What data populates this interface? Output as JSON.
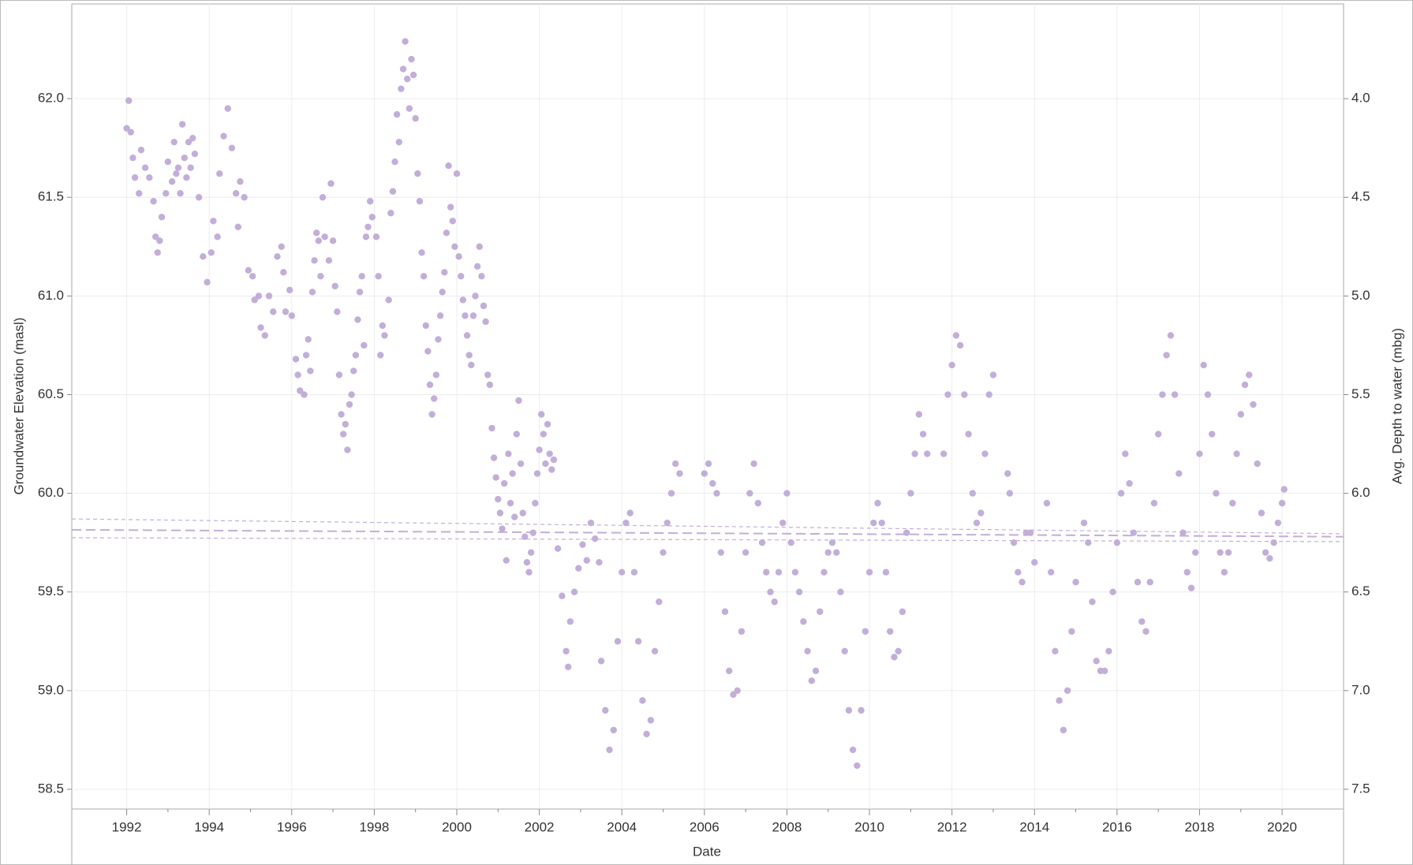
{
  "chart_data": {
    "type": "scatter",
    "x_label": "Date",
    "y_label": "Groundwater Elevation (masl)",
    "y2_label": "Avg. Depth to water (mbg)",
    "color": "#c3aed8",
    "grid": true,
    "xlim": [
      1990.67,
      2021.49
    ],
    "xticks": [
      1992,
      1994,
      1996,
      1998,
      2000,
      2002,
      2004,
      2006,
      2008,
      2010,
      2012,
      2014,
      2016,
      2018,
      2020
    ],
    "ylim": [
      58.4,
      62.48
    ],
    "yticks": [
      {
        "value": 58.5,
        "label": "58.5"
      },
      {
        "value": 59,
        "label": "59.0"
      },
      {
        "value": 59.5,
        "label": "59.5"
      },
      {
        "value": 60,
        "label": "60.0"
      },
      {
        "value": 60.5,
        "label": "60.5"
      },
      {
        "value": 61,
        "label": "61.0"
      },
      {
        "value": 61.5,
        "label": "61.5"
      },
      {
        "value": 62,
        "label": "62.0"
      }
    ],
    "y2lim": [
      7.6,
      3.52
    ],
    "y2ticks": [
      {
        "value": 7.5,
        "label": "7.5"
      },
      {
        "value": 7,
        "label": "7.0"
      },
      {
        "value": 6.5,
        "label": "6.5"
      },
      {
        "value": 6,
        "label": "6.0"
      },
      {
        "value": 5.5,
        "label": "5.5"
      },
      {
        "value": 5,
        "label": "5.0"
      },
      {
        "value": 4.5,
        "label": "4.5"
      },
      {
        "value": 4,
        "label": "4.0"
      }
    ],
    "trend_lines": [
      {
        "x": [
          1990.67,
          2021.49
        ],
        "values": [
          59.815,
          59.78
        ]
      },
      {
        "x": [
          1990.67,
          2021.49
        ],
        "values": [
          59.87,
          59.795
        ]
      },
      {
        "x": [
          1990.67,
          2021.49
        ],
        "values": [
          59.775,
          59.755
        ]
      }
    ],
    "x": [
      1992.0,
      1992.05,
      1992.1,
      1992.15,
      1992.2,
      1992.3,
      1992.35,
      1992.45,
      1992.55,
      1992.65,
      1992.7,
      1992.75,
      1992.8,
      1992.85,
      1992.95,
      1993.0,
      1993.1,
      1993.15,
      1993.2,
      1993.25,
      1993.3,
      1993.35,
      1993.4,
      1993.45,
      1993.5,
      1993.55,
      1993.6,
      1993.65,
      1993.75,
      1993.85,
      1993.95,
      1994.05,
      1994.1,
      1994.2,
      1994.25,
      1994.35,
      1994.45,
      1994.55,
      1994.65,
      1994.7,
      1994.75,
      1994.85,
      1994.95,
      1995.05,
      1995.1,
      1995.2,
      1995.25,
      1995.35,
      1995.45,
      1995.55,
      1995.65,
      1995.75,
      1995.8,
      1995.85,
      1995.95,
      1996.0,
      1996.1,
      1996.15,
      1996.2,
      1996.3,
      1996.35,
      1996.4,
      1996.45,
      1996.5,
      1996.55,
      1996.6,
      1996.65,
      1996.7,
      1996.75,
      1996.8,
      1996.9,
      1996.95,
      1997.0,
      1997.05,
      1997.1,
      1997.15,
      1997.2,
      1997.25,
      1997.3,
      1997.35,
      1997.4,
      1997.45,
      1997.5,
      1997.55,
      1997.6,
      1997.65,
      1997.7,
      1997.75,
      1997.8,
      1997.85,
      1997.9,
      1997.95,
      1998.05,
      1998.1,
      1998.15,
      1998.2,
      1998.25,
      1998.35,
      1998.4,
      1998.45,
      1998.5,
      1998.55,
      1998.6,
      1998.65,
      1998.7,
      1998.75,
      1998.8,
      1998.85,
      1998.9,
      1998.95,
      1999.0,
      1999.05,
      1999.1,
      1999.15,
      1999.2,
      1999.25,
      1999.3,
      1999.35,
      1999.4,
      1999.45,
      1999.5,
      1999.55,
      1999.6,
      1999.65,
      1999.7,
      1999.75,
      1999.8,
      1999.85,
      1999.9,
      1999.95,
      2000.0,
      2000.05,
      2000.1,
      2000.15,
      2000.2,
      2000.25,
      2000.3,
      2000.35,
      2000.4,
      2000.45,
      2000.5,
      2000.55,
      2000.6,
      2000.65,
      2000.7,
      2000.75,
      2000.8,
      2000.85,
      2000.9,
      2000.95,
      2001.0,
      2001.05,
      2001.1,
      2001.15,
      2001.2,
      2001.25,
      2001.3,
      2001.35,
      2001.4,
      2001.45,
      2001.5,
      2001.55,
      2001.6,
      2001.65,
      2001.7,
      2001.75,
      2001.8,
      2001.85,
      2001.9,
      2001.95,
      2002.0,
      2002.05,
      2002.1,
      2002.15,
      2002.2,
      2002.25,
      2002.3,
      2002.35,
      2002.45,
      2002.55,
      2002.65,
      2002.7,
      2002.75,
      2002.85,
      2002.95,
      2003.05,
      2003.15,
      2003.25,
      2003.35,
      2003.45,
      2003.5,
      2003.6,
      2003.7,
      2003.8,
      2003.9,
      2004.0,
      2004.1,
      2004.2,
      2004.3,
      2004.4,
      2004.5,
      2004.6,
      2004.7,
      2004.8,
      2004.9,
      2005.0,
      2005.1,
      2005.2,
      2005.3,
      2005.4,
      2006.0,
      2006.1,
      2006.2,
      2006.3,
      2006.4,
      2006.5,
      2006.6,
      2006.7,
      2006.8,
      2006.9,
      2007.0,
      2007.1,
      2007.2,
      2007.3,
      2007.4,
      2007.5,
      2007.6,
      2007.7,
      2007.8,
      2007.9,
      2008.0,
      2008.1,
      2008.2,
      2008.3,
      2008.4,
      2008.5,
      2008.6,
      2008.7,
      2008.8,
      2008.9,
      2009.0,
      2009.1,
      2009.2,
      2009.3,
      2009.4,
      2009.5,
      2009.6,
      2009.7,
      2009.8,
      2009.9,
      2010.0,
      2010.1,
      2010.2,
      2010.3,
      2010.4,
      2010.5,
      2010.6,
      2010.7,
      2010.8,
      2010.9,
      2011.0,
      2011.1,
      2011.2,
      2011.3,
      2011.4,
      2011.8,
      2011.9,
      2012.0,
      2012.1,
      2012.2,
      2012.3,
      2012.4,
      2012.5,
      2012.6,
      2012.7,
      2012.8,
      2012.9,
      2013.0,
      2013.35,
      2013.4,
      2013.5,
      2013.6,
      2013.7,
      2013.8,
      2013.9,
      2014.0,
      2014.3,
      2014.4,
      2014.5,
      2014.6,
      2014.7,
      2014.8,
      2014.9,
      2015.0,
      2015.2,
      2015.3,
      2015.4,
      2015.5,
      2015.6,
      2015.7,
      2015.8,
      2015.9,
      2016.0,
      2016.1,
      2016.2,
      2016.3,
      2016.4,
      2016.5,
      2016.6,
      2016.7,
      2016.8,
      2016.9,
      2017.0,
      2017.1,
      2017.2,
      2017.3,
      2017.4,
      2017.5,
      2017.6,
      2017.7,
      2017.8,
      2017.9,
      2018.0,
      2018.1,
      2018.2,
      2018.3,
      2018.4,
      2018.5,
      2018.6,
      2018.7,
      2018.8,
      2018.9,
      2019.0,
      2019.1,
      2019.2,
      2019.3,
      2019.4,
      2019.5,
      2019.6,
      2019.7,
      2019.8,
      2019.9,
      2020.0,
      2020.05
    ],
    "values": [
      61.85,
      61.99,
      61.83,
      61.7,
      61.6,
      61.52,
      61.74,
      61.65,
      61.6,
      61.48,
      61.3,
      61.22,
      61.28,
      61.4,
      61.52,
      61.68,
      61.58,
      61.78,
      61.62,
      61.65,
      61.52,
      61.87,
      61.7,
      61.6,
      61.78,
      61.65,
      61.8,
      61.72,
      61.5,
      61.2,
      61.07,
      61.22,
      61.38,
      61.3,
      61.62,
      61.81,
      61.95,
      61.75,
      61.52,
      61.35,
      61.58,
      61.5,
      61.13,
      61.1,
      60.98,
      61.0,
      60.84,
      60.8,
      61.0,
      60.92,
      61.2,
      61.25,
      61.12,
      60.92,
      61.03,
      60.9,
      60.68,
      60.6,
      60.52,
      60.5,
      60.7,
      60.78,
      60.62,
      61.02,
      61.18,
      61.32,
      61.28,
      61.1,
      61.5,
      61.3,
      61.18,
      61.57,
      61.28,
      61.05,
      60.92,
      60.6,
      60.4,
      60.3,
      60.35,
      60.22,
      60.45,
      60.5,
      60.62,
      60.7,
      60.88,
      61.02,
      61.1,
      60.75,
      61.3,
      61.35,
      61.48,
      61.4,
      61.3,
      61.1,
      60.7,
      60.85,
      60.8,
      60.98,
      61.42,
      61.53,
      61.68,
      61.92,
      61.78,
      62.05,
      62.15,
      62.29,
      62.1,
      61.95,
      62.2,
      62.12,
      61.9,
      61.62,
      61.48,
      61.22,
      61.1,
      60.85,
      60.72,
      60.55,
      60.4,
      60.48,
      60.6,
      60.78,
      60.9,
      61.02,
      61.12,
      61.32,
      61.66,
      61.45,
      61.38,
      61.25,
      61.62,
      61.2,
      61.1,
      60.98,
      60.9,
      60.8,
      60.7,
      60.65,
      60.9,
      61.0,
      61.15,
      61.25,
      61.1,
      60.95,
      60.87,
      60.6,
      60.55,
      60.33,
      60.18,
      60.08,
      59.97,
      59.9,
      59.82,
      60.05,
      59.66,
      60.2,
      59.95,
      60.1,
      59.88,
      60.3,
      60.47,
      60.15,
      59.9,
      59.78,
      59.65,
      59.6,
      59.7,
      59.8,
      59.95,
      60.1,
      60.22,
      60.4,
      60.3,
      60.15,
      60.35,
      60.2,
      60.12,
      60.17,
      59.72,
      59.48,
      59.2,
      59.12,
      59.35,
      59.5,
      59.62,
      59.74,
      59.66,
      59.85,
      59.77,
      59.65,
      59.15,
      58.9,
      58.7,
      58.8,
      59.25,
      59.6,
      59.85,
      59.9,
      59.6,
      59.25,
      58.95,
      58.78,
      58.85,
      59.2,
      59.45,
      59.7,
      59.85,
      60.0,
      60.15,
      60.1,
      60.1,
      60.15,
      60.05,
      60.0,
      59.7,
      59.4,
      59.1,
      58.98,
      59.0,
      59.3,
      59.7,
      60.0,
      60.15,
      59.95,
      59.75,
      59.6,
      59.5,
      59.45,
      59.6,
      59.85,
      60.0,
      59.75,
      59.6,
      59.5,
      59.35,
      59.2,
      59.05,
      59.1,
      59.4,
      59.6,
      59.7,
      59.75,
      59.7,
      59.5,
      59.2,
      58.9,
      58.7,
      58.62,
      58.9,
      59.3,
      59.6,
      59.85,
      59.95,
      59.85,
      59.6,
      59.3,
      59.17,
      59.2,
      59.4,
      59.8,
      60.0,
      60.2,
      60.4,
      60.3,
      60.2,
      60.2,
      60.5,
      60.65,
      60.8,
      60.75,
      60.5,
      60.3,
      60.0,
      59.85,
      59.9,
      60.2,
      60.5,
      60.6,
      60.1,
      60.0,
      59.75,
      59.6,
      59.55,
      59.8,
      59.8,
      59.65,
      59.95,
      59.6,
      59.2,
      58.95,
      58.8,
      59.0,
      59.3,
      59.55,
      59.85,
      59.75,
      59.45,
      59.15,
      59.1,
      59.1,
      59.2,
      59.5,
      59.75,
      60.0,
      60.2,
      60.05,
      59.8,
      59.55,
      59.35,
      59.3,
      59.55,
      59.95,
      60.3,
      60.5,
      60.7,
      60.8,
      60.5,
      60.1,
      59.8,
      59.6,
      59.52,
      59.7,
      60.2,
      60.65,
      60.5,
      60.3,
      60.0,
      59.7,
      59.6,
      59.7,
      59.95,
      60.2,
      60.4,
      60.55,
      60.6,
      60.45,
      60.15,
      59.9,
      59.7,
      59.67,
      59.75,
      59.85,
      59.95,
      60.02
    ]
  }
}
